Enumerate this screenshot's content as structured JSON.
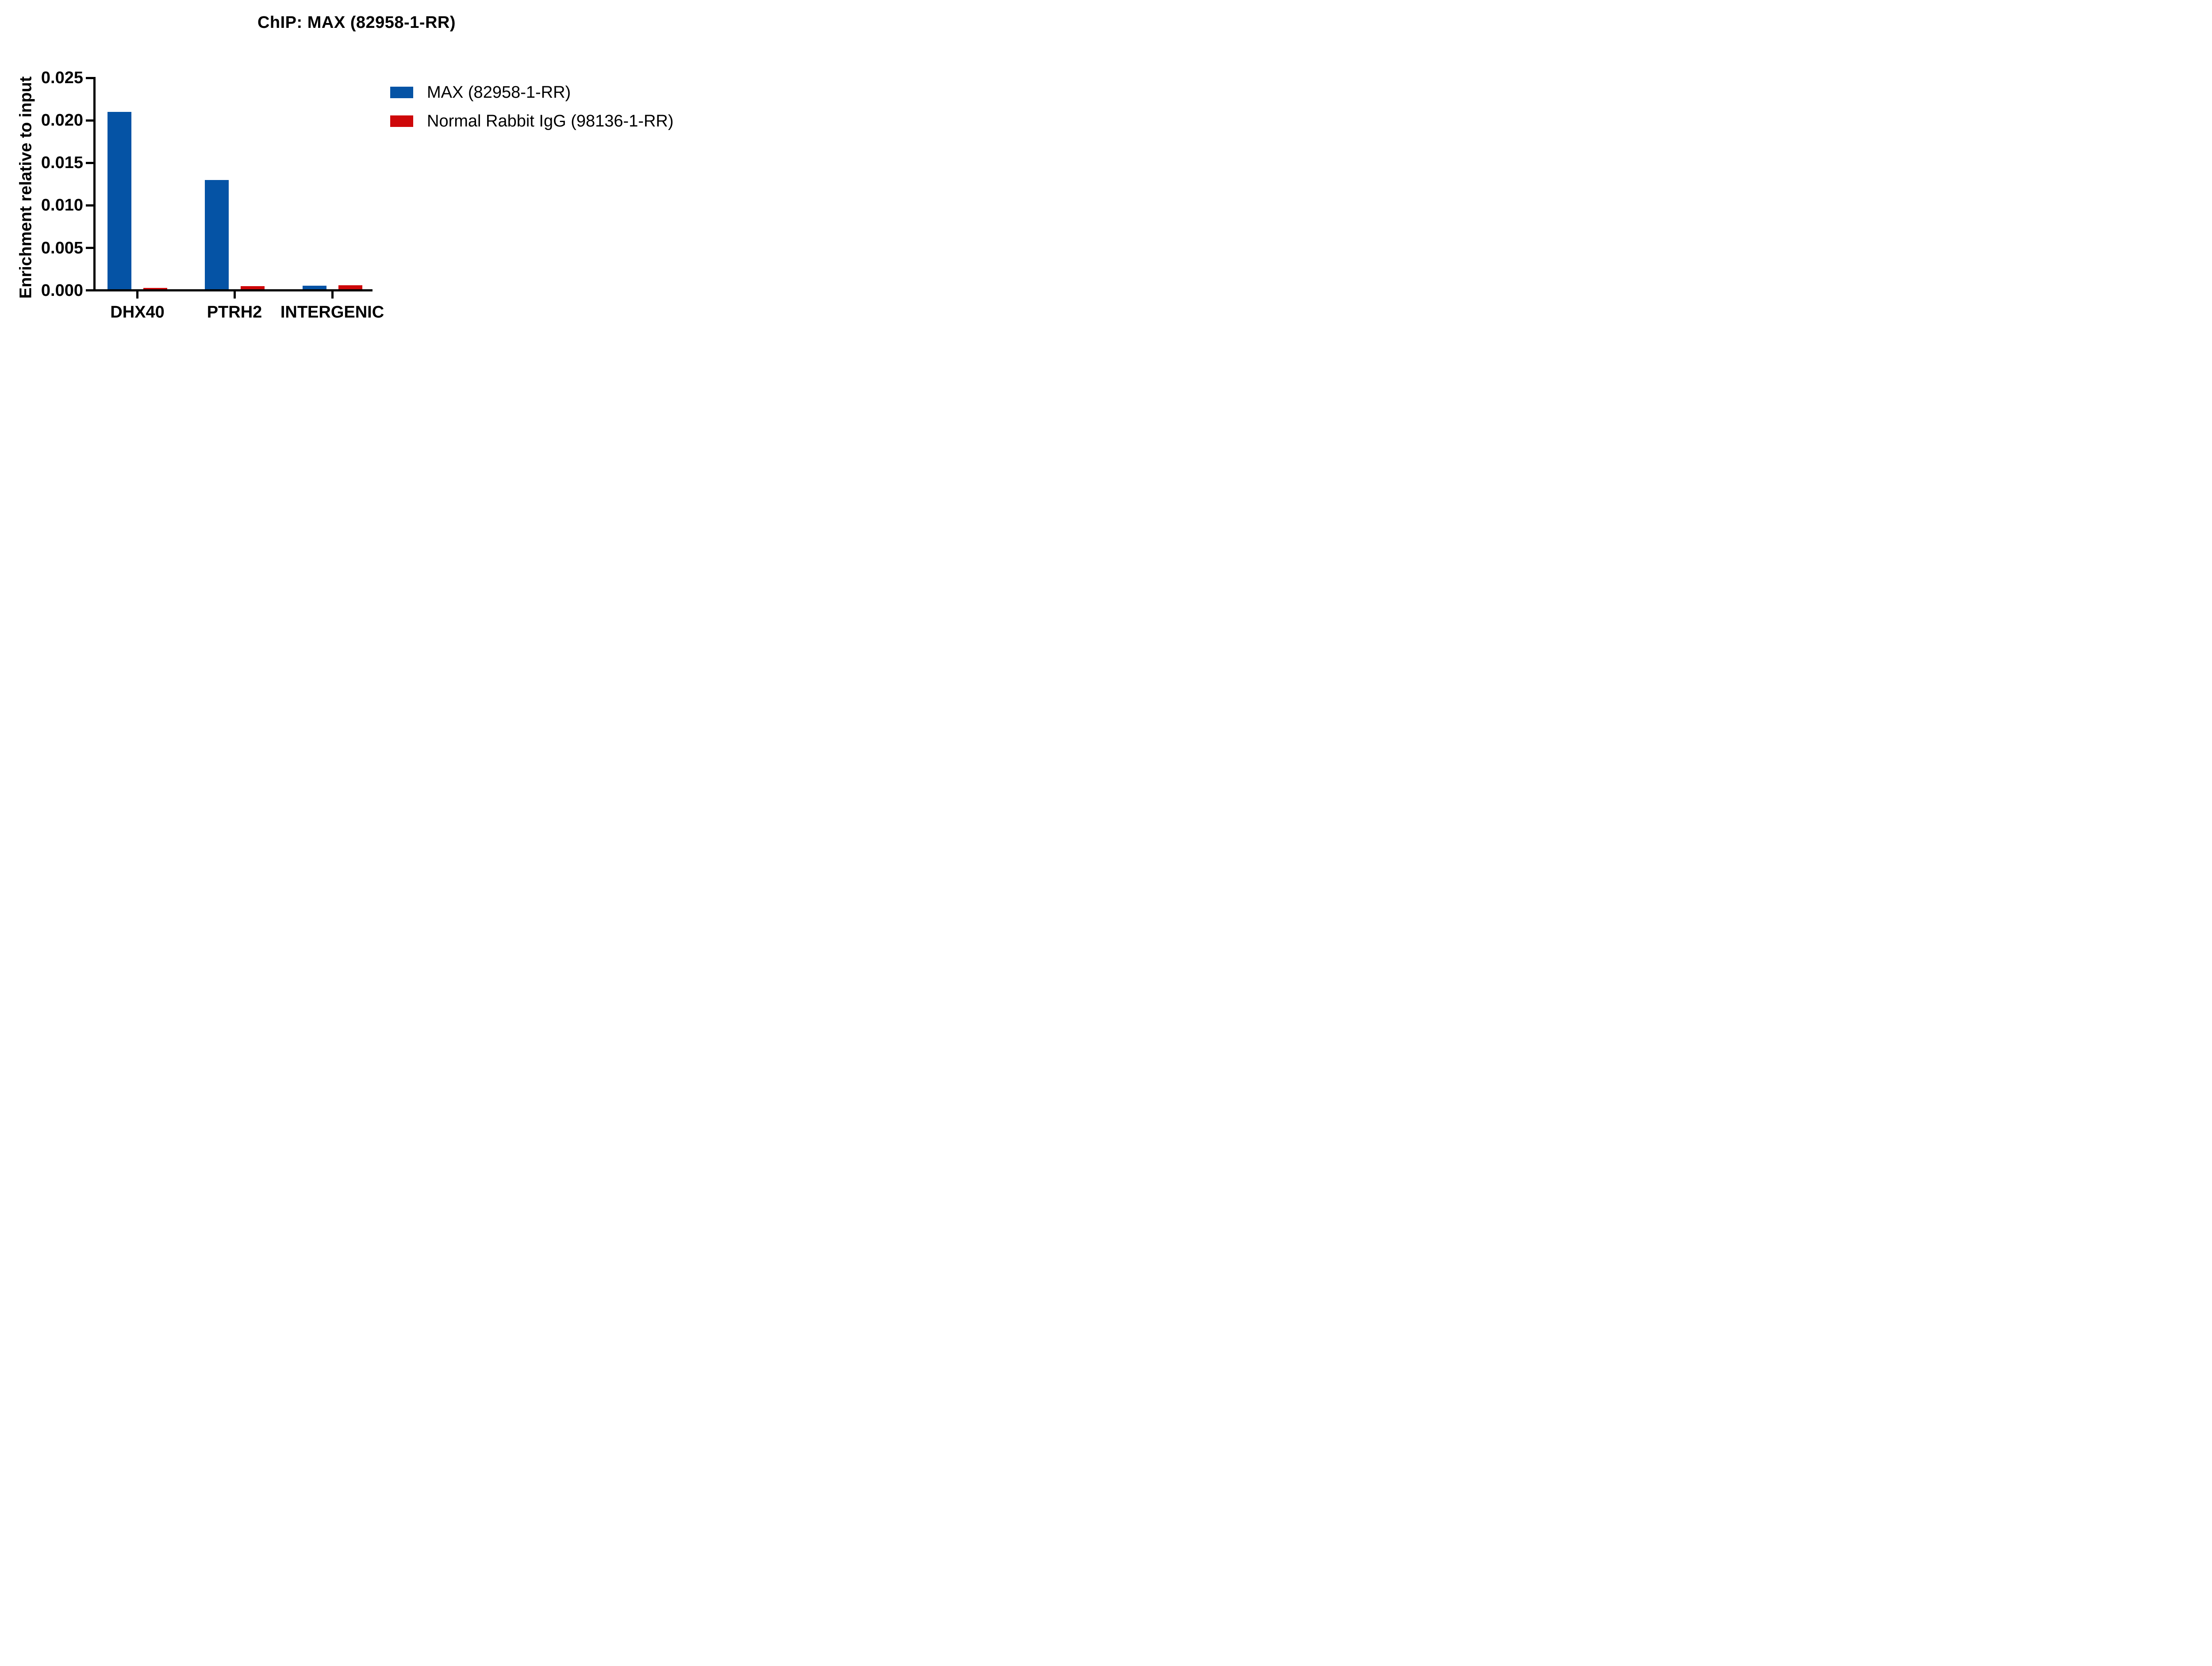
{
  "figure": {
    "background": "#ffffff",
    "text_color": "#000000",
    "axis_color": "#000000"
  },
  "chart_data": {
    "type": "bar",
    "title": "ChIP: MAX (82958-1-RR)",
    "xlabel": "",
    "ylabel": "Enrichment relative to input",
    "categories": [
      "DHX40",
      "PTRH2",
      "INTERGENIC"
    ],
    "series": [
      {
        "name": "MAX (82958-1-RR)",
        "color": "#0553A5",
        "values": [
          0.021,
          0.013,
          0.00055
        ]
      },
      {
        "name": "Normal Rabbit IgG (98136-1-RR)",
        "color": "#CE0709",
        "values": [
          0.0003,
          0.0005,
          0.0006
        ]
      }
    ],
    "ylim": [
      0,
      0.025
    ],
    "ytick_step": 0.005,
    "ytick_labels": [
      "0.000",
      "0.005",
      "0.010",
      "0.015",
      "0.020",
      "0.025"
    ],
    "grid": false,
    "legend_position": "right-top"
  }
}
